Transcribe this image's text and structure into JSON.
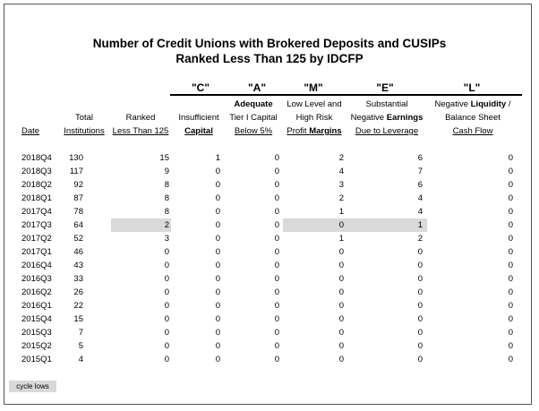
{
  "title_line1": "Number of Credit Unions with Brokered Deposits and CUSIPs",
  "title_line2": "Ranked Less Than 125 by IDCFP",
  "categories": {
    "c": "\"C\"",
    "a": "\"A\"",
    "m": "\"M\"",
    "e": "\"E\"",
    "l": "\"L\""
  },
  "headers": {
    "date": "Date",
    "total_1": "Total",
    "total_2": "Institutions",
    "ranked_1": "Ranked",
    "ranked_2": "Less Than 125",
    "c_1": "Insufficient",
    "c_2": "Capital",
    "a_1": "Adequate",
    "a_2": "Tier I Capital",
    "a_3": "Below 5%",
    "m_1": "Low Level and",
    "m_2": "High Risk",
    "m_3a": "Profit ",
    "m_3b": "Margins",
    "e_1": "Substantial",
    "e_2a": "Negative ",
    "e_2b": "Earnings",
    "e_3": "Due to Leverage",
    "l_1a": "Negative ",
    "l_1b": "Liquidity",
    "l_1c": " /",
    "l_2": "Balance Sheet",
    "l_3": "Cash Flow"
  },
  "rows": [
    [
      "2018Q4",
      "130",
      "15",
      "1",
      "0",
      "2",
      "6",
      "0"
    ],
    [
      "2018Q3",
      "117",
      "9",
      "0",
      "0",
      "4",
      "7",
      "0"
    ],
    [
      "2018Q2",
      "92",
      "8",
      "0",
      "0",
      "3",
      "6",
      "0"
    ],
    [
      "2018Q1",
      "87",
      "8",
      "0",
      "0",
      "2",
      "4",
      "0"
    ],
    [
      "2017Q4",
      "78",
      "8",
      "0",
      "0",
      "1",
      "4",
      "0"
    ],
    [
      "2017Q3",
      "64",
      "2",
      "0",
      "0",
      "0",
      "1",
      "0"
    ],
    [
      "2017Q2",
      "52",
      "3",
      "0",
      "0",
      "1",
      "2",
      "0"
    ],
    [
      "2017Q1",
      "46",
      "0",
      "0",
      "0",
      "0",
      "0",
      "0"
    ],
    [
      "2016Q4",
      "43",
      "0",
      "0",
      "0",
      "0",
      "0",
      "0"
    ],
    [
      "2016Q3",
      "33",
      "0",
      "0",
      "0",
      "0",
      "0",
      "0"
    ],
    [
      "2016Q2",
      "26",
      "0",
      "0",
      "0",
      "0",
      "0",
      "0"
    ],
    [
      "2016Q1",
      "22",
      "0",
      "0",
      "0",
      "0",
      "0",
      "0"
    ],
    [
      "2015Q4",
      "15",
      "0",
      "0",
      "0",
      "0",
      "0",
      "0"
    ],
    [
      "2015Q3",
      "7",
      "0",
      "0",
      "0",
      "0",
      "0",
      "0"
    ],
    [
      "2015Q2",
      "5",
      "0",
      "0",
      "0",
      "0",
      "0",
      "0"
    ],
    [
      "2015Q1",
      "4",
      "0",
      "0",
      "0",
      "0",
      "0",
      "0"
    ]
  ],
  "highlight": {
    "color": "#d9d9d9",
    "row": "2017Q3",
    "columns": [
      "Ranked Less Than 125",
      "Low Level and High Risk Profit Margins",
      "Substantial Negative Earnings Due to Leverage"
    ]
  },
  "legend": {
    "label": "cycle lows",
    "color": "#d9d9d9"
  }
}
